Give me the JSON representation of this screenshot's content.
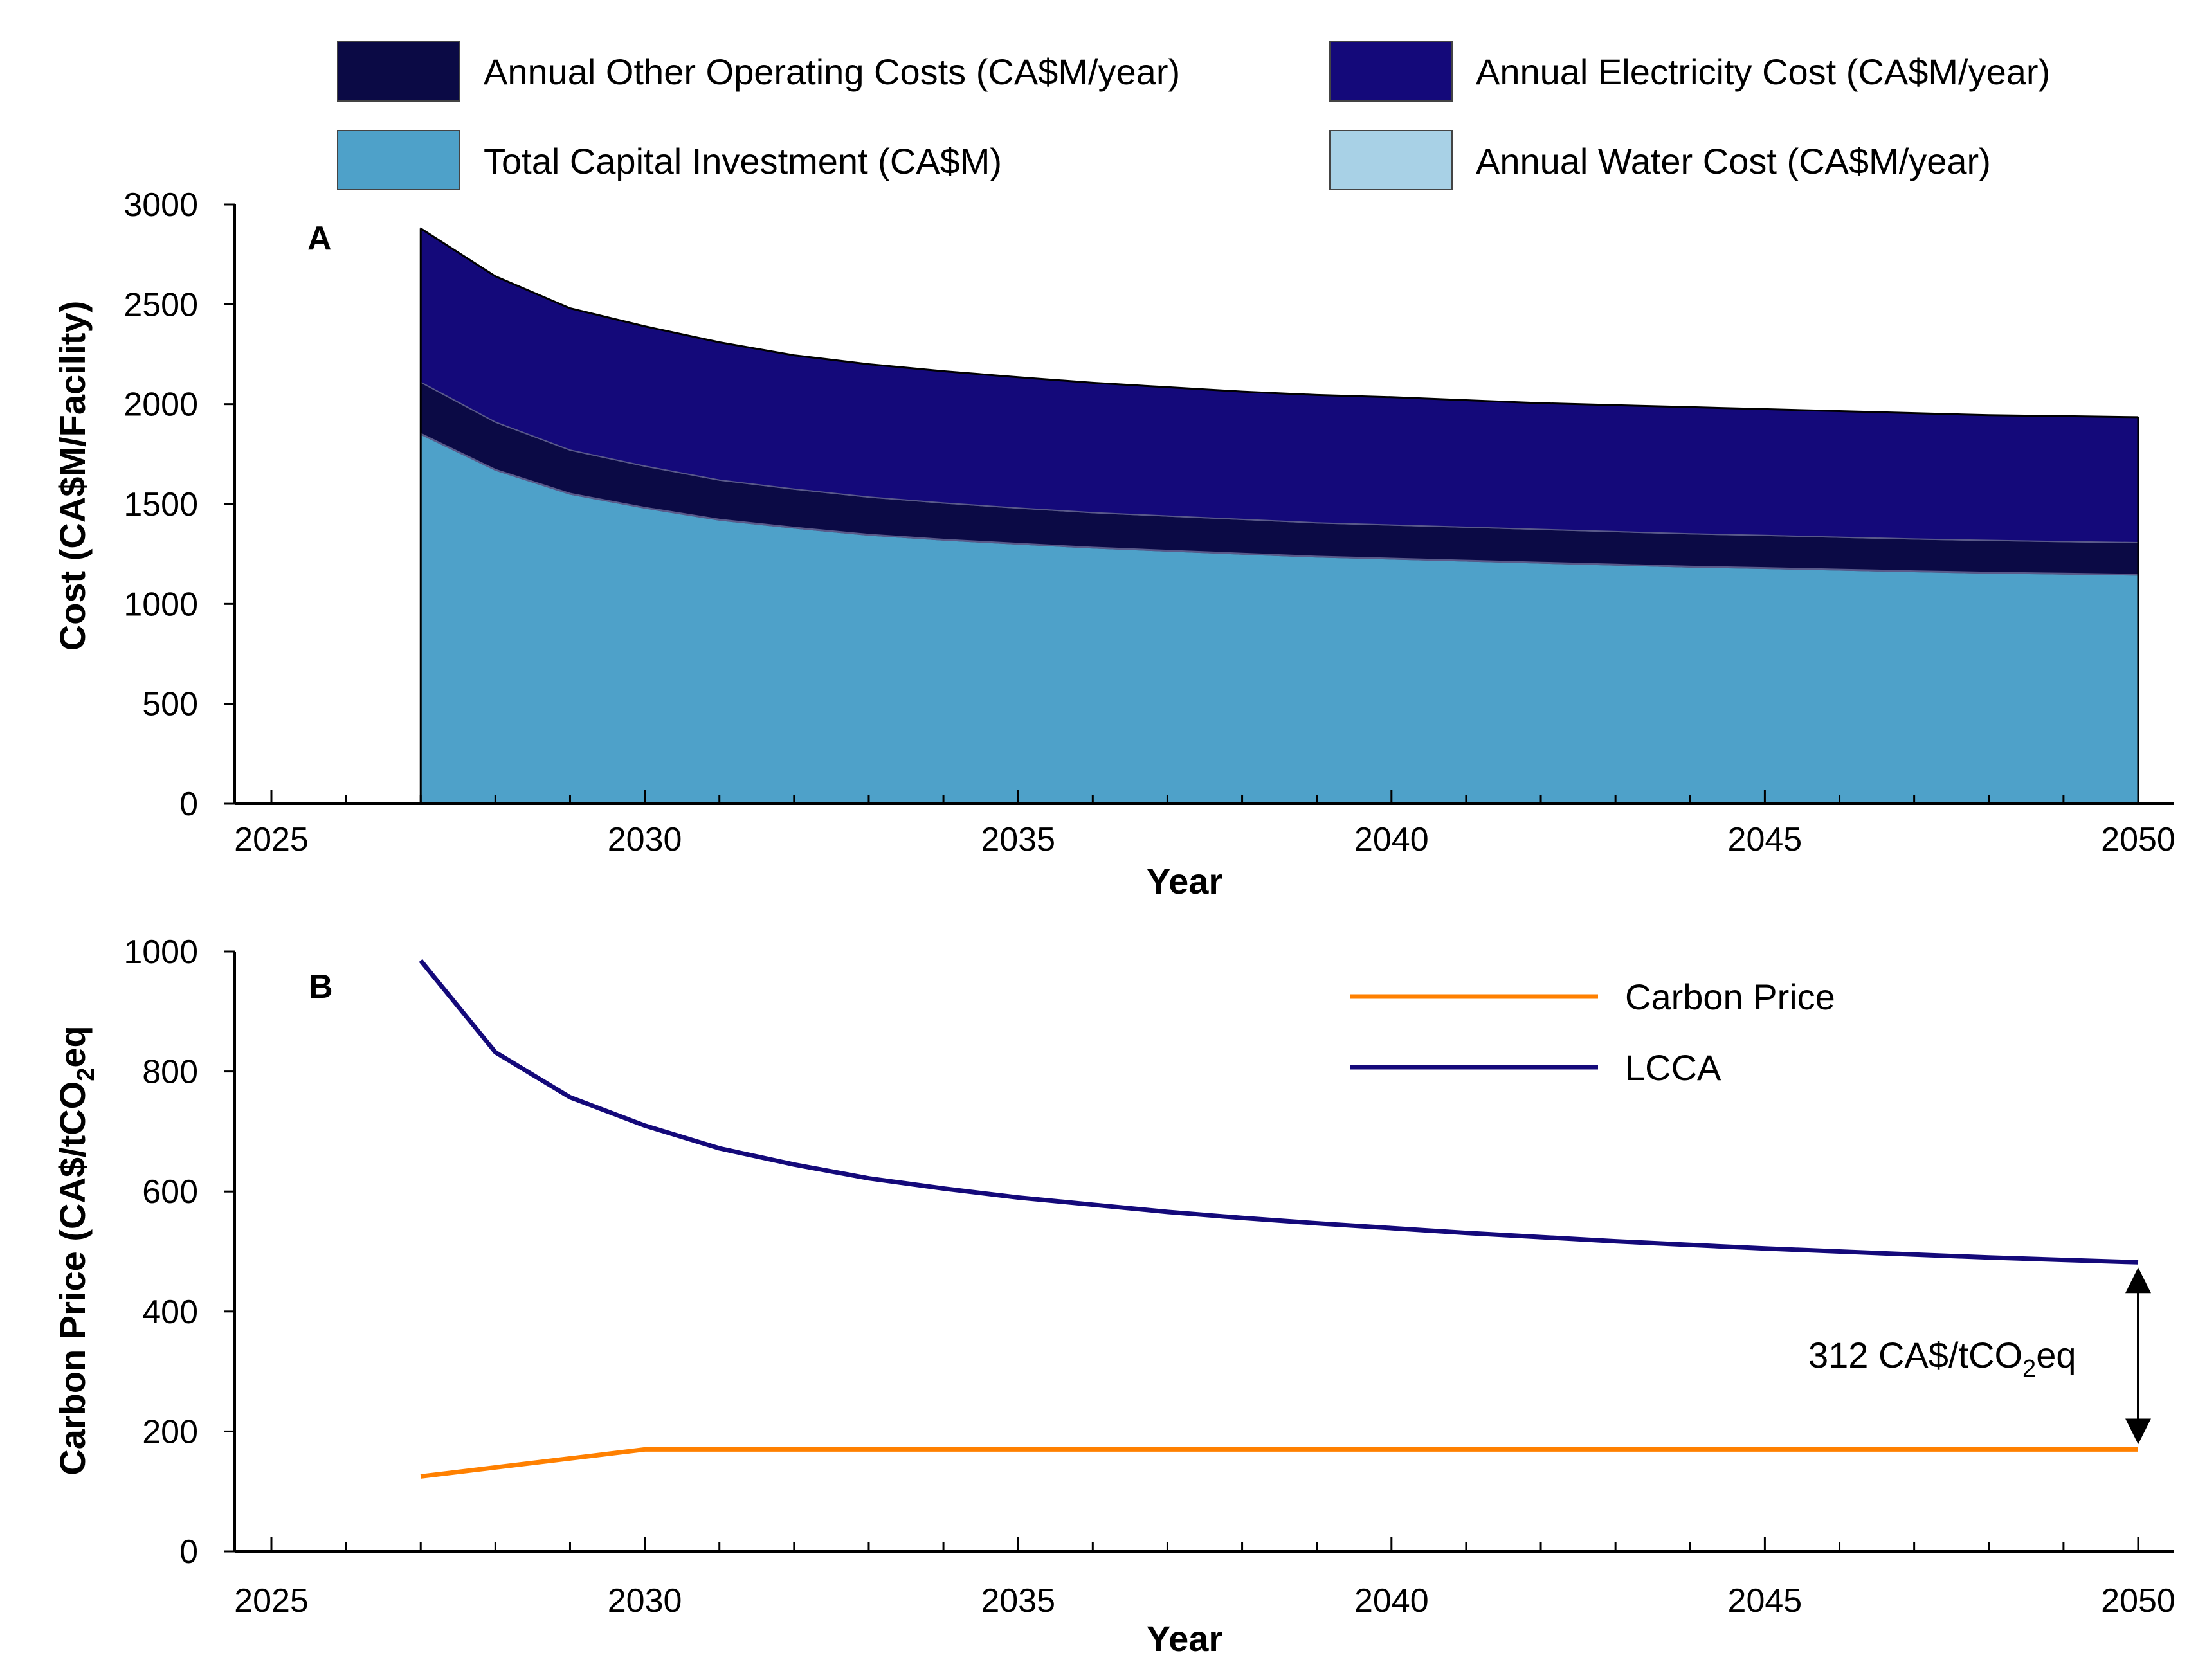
{
  "chart_data": [
    {
      "panel": "A",
      "type": "area",
      "title": "",
      "xlabel": "Year",
      "ylabel": "Cost (CA$M/Facility)",
      "xlim": [
        2025,
        2050
      ],
      "ylim": [
        0,
        3000
      ],
      "xticks": [
        2025,
        2030,
        2035,
        2040,
        2045,
        2050
      ],
      "yticks": [
        0,
        500,
        1000,
        1500,
        2000,
        2500,
        3000
      ],
      "grid": false,
      "stacked": true,
      "legend_position": "top",
      "x": [
        2027,
        2028,
        2029,
        2030,
        2031,
        2032,
        2033,
        2034,
        2035,
        2036,
        2037,
        2038,
        2039,
        2040,
        2041,
        2042,
        2043,
        2044,
        2045,
        2046,
        2047,
        2048,
        2049,
        2050
      ],
      "series": [
        {
          "name": "Total Capital Investment (CA$M)",
          "color": "#4ea1c9",
          "values": [
            1850,
            1670,
            1550,
            1480,
            1420,
            1380,
            1345,
            1320,
            1300,
            1280,
            1265,
            1250,
            1235,
            1225,
            1215,
            1205,
            1195,
            1185,
            1178,
            1170,
            1162,
            1155,
            1150,
            1145
          ]
        },
        {
          "name": "Annual Water Cost (CA$M/year)",
          "color": "#a8d1e6",
          "values": [
            3,
            3,
            3,
            3,
            3,
            3,
            3,
            3,
            3,
            3,
            3,
            3,
            3,
            3,
            3,
            3,
            3,
            3,
            3,
            3,
            3,
            3,
            3,
            3
          ]
        },
        {
          "name": "Annual Other Operating Costs (CA$M/year)",
          "color": "#0b0a45",
          "values": [
            257,
            237,
            217,
            207,
            197,
            192,
            187,
            182,
            177,
            174,
            172,
            170,
            168,
            167,
            166,
            165,
            164,
            163,
            162,
            161,
            160,
            160,
            159,
            159
          ]
        },
        {
          "name": "Annual Electricity Cost (CA$M/year)",
          "color": "#14097a",
          "values": [
            770,
            730,
            710,
            700,
            690,
            670,
            665,
            660,
            655,
            650,
            645,
            640,
            640,
            640,
            636,
            632,
            633,
            634,
            632,
            631,
            630,
            627,
            628,
            628
          ]
        }
      ]
    },
    {
      "panel": "B",
      "type": "line",
      "title": "",
      "xlabel": "Year",
      "ylabel_prefix": "Carbon Price (CA$/tCO",
      "ylabel_sub": "2",
      "ylabel_suffix": "eq",
      "xlim": [
        2025,
        2050
      ],
      "ylim": [
        0,
        1000
      ],
      "xticks": [
        2025,
        2030,
        2035,
        2040,
        2045,
        2050
      ],
      "yticks": [
        0,
        200,
        400,
        600,
        800,
        1000
      ],
      "grid": false,
      "legend_position": "top-right",
      "x": [
        2027,
        2028,
        2029,
        2030,
        2031,
        2032,
        2033,
        2034,
        2035,
        2036,
        2037,
        2038,
        2039,
        2040,
        2041,
        2042,
        2043,
        2044,
        2045,
        2046,
        2047,
        2048,
        2049,
        2050
      ],
      "series": [
        {
          "name": "Carbon Price",
          "color": "#ff8000",
          "values": [
            125,
            140,
            155,
            170,
            170,
            170,
            170,
            170,
            170,
            170,
            170,
            170,
            170,
            170,
            170,
            170,
            170,
            170,
            170,
            170,
            170,
            170,
            170,
            170
          ]
        },
        {
          "name": "LCCA",
          "color": "#14097a",
          "values": [
            985,
            832,
            757,
            710,
            672,
            645,
            622,
            605,
            590,
            578,
            566,
            556,
            547,
            539,
            531,
            524,
            517,
            511,
            505,
            500,
            495,
            490,
            486,
            482
          ]
        }
      ],
      "annotation": {
        "prefix": "312 CA$/tCO",
        "sub": "2",
        "suffix": "eq",
        "x": 2050,
        "y_from": 170,
        "y_to": 482
      }
    }
  ]
}
